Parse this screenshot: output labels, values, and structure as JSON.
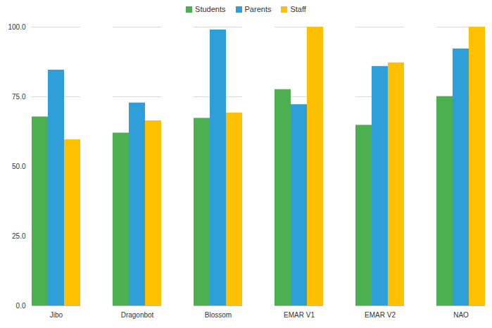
{
  "chart_data": {
    "type": "bar",
    "categories": [
      "Jibo",
      "Dragonbot",
      "Blossom",
      "EMAR V1",
      "EMAR V2",
      "NAO"
    ],
    "series": [
      {
        "name": "Students",
        "color": "#4caf50",
        "values": [
          67.8,
          62.0,
          67.3,
          77.6,
          64.8,
          75.1
        ]
      },
      {
        "name": "Parents",
        "color": "#2e9fd9",
        "values": [
          84.6,
          72.8,
          99.0,
          72.2,
          85.9,
          92.2
        ]
      },
      {
        "name": "Staff",
        "color": "#ffc000",
        "values": [
          59.6,
          66.4,
          69.2,
          100,
          87.2,
          100
        ]
      }
    ],
    "ylim": [
      0,
      100
    ],
    "yticks": [
      {
        "value": 0,
        "label": "0.0"
      },
      {
        "value": 25,
        "label": "25.0"
      },
      {
        "value": 50,
        "label": "50.0"
      },
      {
        "value": 75,
        "label": "75.0"
      },
      {
        "value": 100,
        "label": "100.0"
      }
    ],
    "grid": true,
    "legend": "top"
  }
}
